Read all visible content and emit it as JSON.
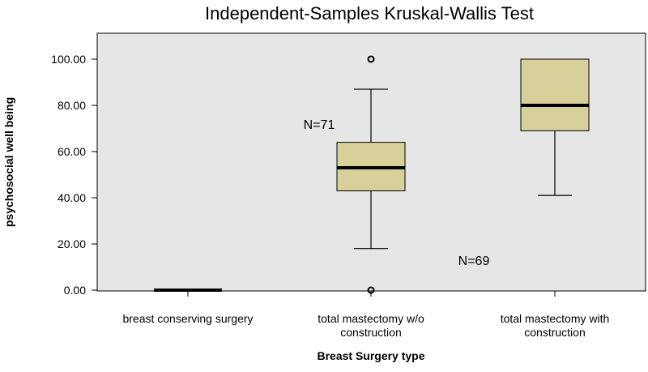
{
  "chart_data": {
    "type": "boxplot",
    "title": "Independent-Samples Kruskal-Wallis Test",
    "xlabel": "Breast Surgery type",
    "ylabel": "psychosocial well being",
    "ylim": [
      0,
      110
    ],
    "yticks": [
      "0.00",
      "20.00",
      "40.00",
      "60.00",
      "80.00",
      "100.00"
    ],
    "ytick_values": [
      0,
      20,
      40,
      60,
      80,
      100
    ],
    "plot_background": "#e6e6e6",
    "box_color": "#d8cf9a",
    "categories": [
      {
        "label_lines": [
          "breast conserving surgery"
        ],
        "min": 0,
        "q1": 0,
        "median": 0,
        "q3": 0,
        "max": 0,
        "outliers": []
      },
      {
        "label_lines": [
          "total mastectomy w/o",
          "construction"
        ],
        "min": 18,
        "q1": 43,
        "median": 53,
        "q3": 64,
        "max": 87,
        "outliers": [
          100,
          0
        ]
      },
      {
        "label_lines": [
          "total mastectomy with",
          "construction"
        ],
        "min": 41,
        "q1": 69,
        "median": 80,
        "q3": 100,
        "max": 100,
        "outliers": []
      }
    ],
    "annotations": [
      {
        "text": "N=71",
        "near_category": 1,
        "y": 72
      },
      {
        "text": "N=69",
        "near_category": 2,
        "y": 13
      }
    ]
  }
}
